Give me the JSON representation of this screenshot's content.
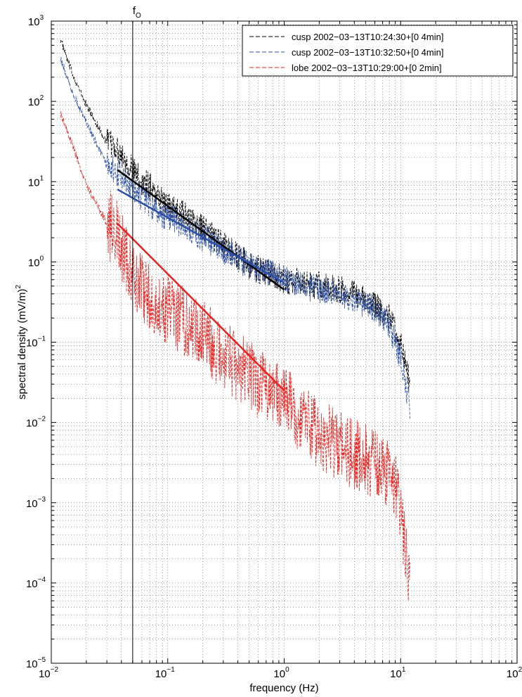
{
  "chart_data": {
    "type": "line",
    "xscale": "log",
    "yscale": "log",
    "xlim": [
      0.01,
      100
    ],
    "ylim": [
      1e-05,
      1000
    ],
    "xlabel": "frequency (Hz)",
    "ylabel": "spectral density (mV/m)",
    "ylabel_sup": "2",
    "grid": true,
    "legend_position": "top-right",
    "x_ticks": [
      {
        "base": "10",
        "exp": "−2",
        "value": 0.01
      },
      {
        "base": "10",
        "exp": "−1",
        "value": 0.1
      },
      {
        "base": "10",
        "exp": "0",
        "value": 1
      },
      {
        "base": "10",
        "exp": "1",
        "value": 10
      },
      {
        "base": "10",
        "exp": "2",
        "value": 100
      }
    ],
    "y_ticks": [
      {
        "base": "10",
        "exp": "−5",
        "value": 1e-05
      },
      {
        "base": "10",
        "exp": "−4",
        "value": 0.0001
      },
      {
        "base": "10",
        "exp": "−3",
        "value": 0.001
      },
      {
        "base": "10",
        "exp": "−2",
        "value": 0.01
      },
      {
        "base": "10",
        "exp": "−1",
        "value": 0.1
      },
      {
        "base": "10",
        "exp": "0",
        "value": 1
      },
      {
        "base": "10",
        "exp": "1",
        "value": 10
      },
      {
        "base": "10",
        "exp": "2",
        "value": 100
      },
      {
        "base": "10",
        "exp": "3",
        "value": 1000
      }
    ],
    "annotations": [
      {
        "text": "f",
        "sub": "O",
        "x": 0.05,
        "type": "vertical-line"
      }
    ],
    "series": [
      {
        "name": "cusp 2002−03−13T10:24:30+[0 4min]",
        "color": "#000000",
        "style": "dashed",
        "x": [
          0.012,
          0.014,
          0.017,
          0.02,
          0.025,
          0.03,
          0.035,
          0.04,
          0.045,
          0.05,
          0.06,
          0.07,
          0.08,
          0.1,
          0.13,
          0.16,
          0.2,
          0.25,
          0.3,
          0.4,
          0.5,
          0.6,
          0.8,
          1,
          1.5,
          2,
          3,
          4,
          5,
          6,
          7,
          8,
          9,
          10,
          11,
          12
        ],
        "values": [
          600,
          300,
          150,
          90,
          50,
          30,
          28,
          22,
          18,
          14,
          10,
          9,
          7,
          5,
          4,
          3.2,
          2.6,
          2.0,
          1.6,
          1.2,
          0.9,
          0.8,
          0.7,
          0.6,
          0.55,
          0.5,
          0.45,
          0.4,
          0.35,
          0.3,
          0.25,
          0.2,
          0.15,
          0.1,
          0.06,
          0.03
        ]
      },
      {
        "name": "cusp 2002−03−13T10:32:50+[0 4min]",
        "color": "#2b4fa8",
        "style": "dashed",
        "x": [
          0.012,
          0.014,
          0.017,
          0.02,
          0.025,
          0.03,
          0.035,
          0.04,
          0.045,
          0.05,
          0.06,
          0.07,
          0.08,
          0.1,
          0.13,
          0.16,
          0.2,
          0.25,
          0.3,
          0.4,
          0.5,
          0.6,
          0.8,
          1,
          1.5,
          2,
          3,
          4,
          5,
          6,
          7,
          8,
          9,
          10,
          11,
          12
        ],
        "values": [
          350,
          180,
          90,
          55,
          28,
          16,
          14,
          12,
          10,
          8,
          6.5,
          5.5,
          4.5,
          3.5,
          3.0,
          2.5,
          2.0,
          1.7,
          1.4,
          1.1,
          0.9,
          0.8,
          0.7,
          0.6,
          0.5,
          0.45,
          0.4,
          0.35,
          0.3,
          0.25,
          0.2,
          0.15,
          0.1,
          0.06,
          0.03,
          0.015
        ]
      },
      {
        "name": "lobe 2002−03−13T10:29:00+[0 2min]",
        "color": "#e8221f",
        "style": "dashed",
        "x": [
          0.012,
          0.014,
          0.017,
          0.02,
          0.025,
          0.03,
          0.035,
          0.04,
          0.045,
          0.05,
          0.06,
          0.07,
          0.08,
          0.1,
          0.13,
          0.16,
          0.2,
          0.25,
          0.3,
          0.4,
          0.5,
          0.6,
          0.8,
          1,
          1.5,
          2,
          3,
          4,
          5,
          6,
          7,
          8,
          9,
          10,
          11,
          12
        ],
        "values": [
          70,
          40,
          18,
          9,
          5,
          3.0,
          2.5,
          1.5,
          1.0,
          0.8,
          0.5,
          0.35,
          0.3,
          0.25,
          0.2,
          0.15,
          0.12,
          0.09,
          0.07,
          0.05,
          0.04,
          0.03,
          0.025,
          0.02,
          0.01,
          0.007,
          0.005,
          0.004,
          0.0035,
          0.003,
          0.0025,
          0.002,
          0.0015,
          0.0008,
          0.0003,
          0.0001
        ]
      }
    ],
    "fit_lines": [
      {
        "color": "#000000",
        "x": [
          0.037,
          1.0
        ],
        "values": [
          14,
          0.45
        ]
      },
      {
        "color": "#2b4fa8",
        "x": [
          0.037,
          1.0
        ],
        "values": [
          8,
          0.55
        ]
      },
      {
        "color": "#e8221f",
        "x": [
          0.037,
          1.0
        ],
        "values": [
          3,
          0.025
        ]
      }
    ]
  }
}
